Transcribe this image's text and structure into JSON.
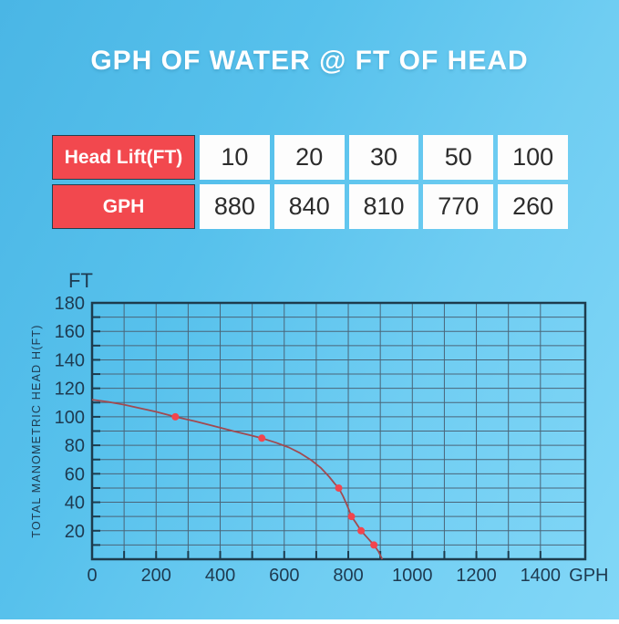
{
  "title": "GPH OF WATER @ FT OF HEAD",
  "table": {
    "rows": [
      {
        "header": "Head Lift(FT)",
        "values": [
          "10",
          "20",
          "30",
          "50",
          "100"
        ]
      },
      {
        "header": "GPH",
        "values": [
          "880",
          "840",
          "810",
          "770",
          "260"
        ]
      }
    ]
  },
  "chart_data": {
    "type": "line",
    "title": "",
    "ylabel": "TOTAL MANOMETRIC HEAD H(FT)",
    "y_unit_label": "FT",
    "x_unit_label": "GPH",
    "xlim": [
      0,
      1540
    ],
    "ylim": [
      0,
      180
    ],
    "x_ticks": [
      0,
      200,
      400,
      600,
      800,
      1000,
      1200,
      1400
    ],
    "x_minor_step": 100,
    "x_minor_max": 1400,
    "y_label_ticks": [
      20,
      40,
      60,
      80,
      100,
      120,
      140,
      160,
      180
    ],
    "y_minor_step": 10,
    "grid": true,
    "legend": "none",
    "series": [
      {
        "name": "total-manometric-head-vs-flow",
        "points": [
          [
            0,
            112
          ],
          [
            50,
            110.5
          ],
          [
            100,
            108.5
          ],
          [
            150,
            106
          ],
          [
            200,
            103.5
          ],
          [
            260,
            100
          ],
          [
            320,
            97
          ],
          [
            380,
            93.5
          ],
          [
            440,
            90
          ],
          [
            490,
            87.3
          ],
          [
            530,
            85
          ],
          [
            575,
            81.8
          ],
          [
            615,
            78.5
          ],
          [
            650,
            74.5
          ],
          [
            685,
            69.5
          ],
          [
            715,
            64
          ],
          [
            740,
            58
          ],
          [
            758,
            53
          ],
          [
            770,
            50
          ],
          [
            783,
            44.5
          ],
          [
            797,
            37.5
          ],
          [
            810,
            30
          ],
          [
            824,
            25.5
          ],
          [
            840,
            20
          ],
          [
            858,
            15.5
          ],
          [
            880,
            10
          ],
          [
            894,
            5.5
          ],
          [
            906,
            0
          ]
        ],
        "marked_points": [
          [
            260,
            100
          ],
          [
            530,
            85
          ],
          [
            770,
            50
          ],
          [
            810,
            30
          ],
          [
            840,
            20
          ],
          [
            880,
            10
          ]
        ]
      }
    ],
    "colors": {
      "line": "#a14a50",
      "marker": "#f2454e",
      "grid": "#4a6579",
      "axis": "#1d3b4d",
      "text": "#1e3a50"
    }
  },
  "colors": {
    "background_top": "#4ab6e5",
    "background_bottom": "#82d7f7",
    "accent_red": "#f2484e",
    "title_text": "#ffffff",
    "table_value_text": "#2c2c2c"
  }
}
